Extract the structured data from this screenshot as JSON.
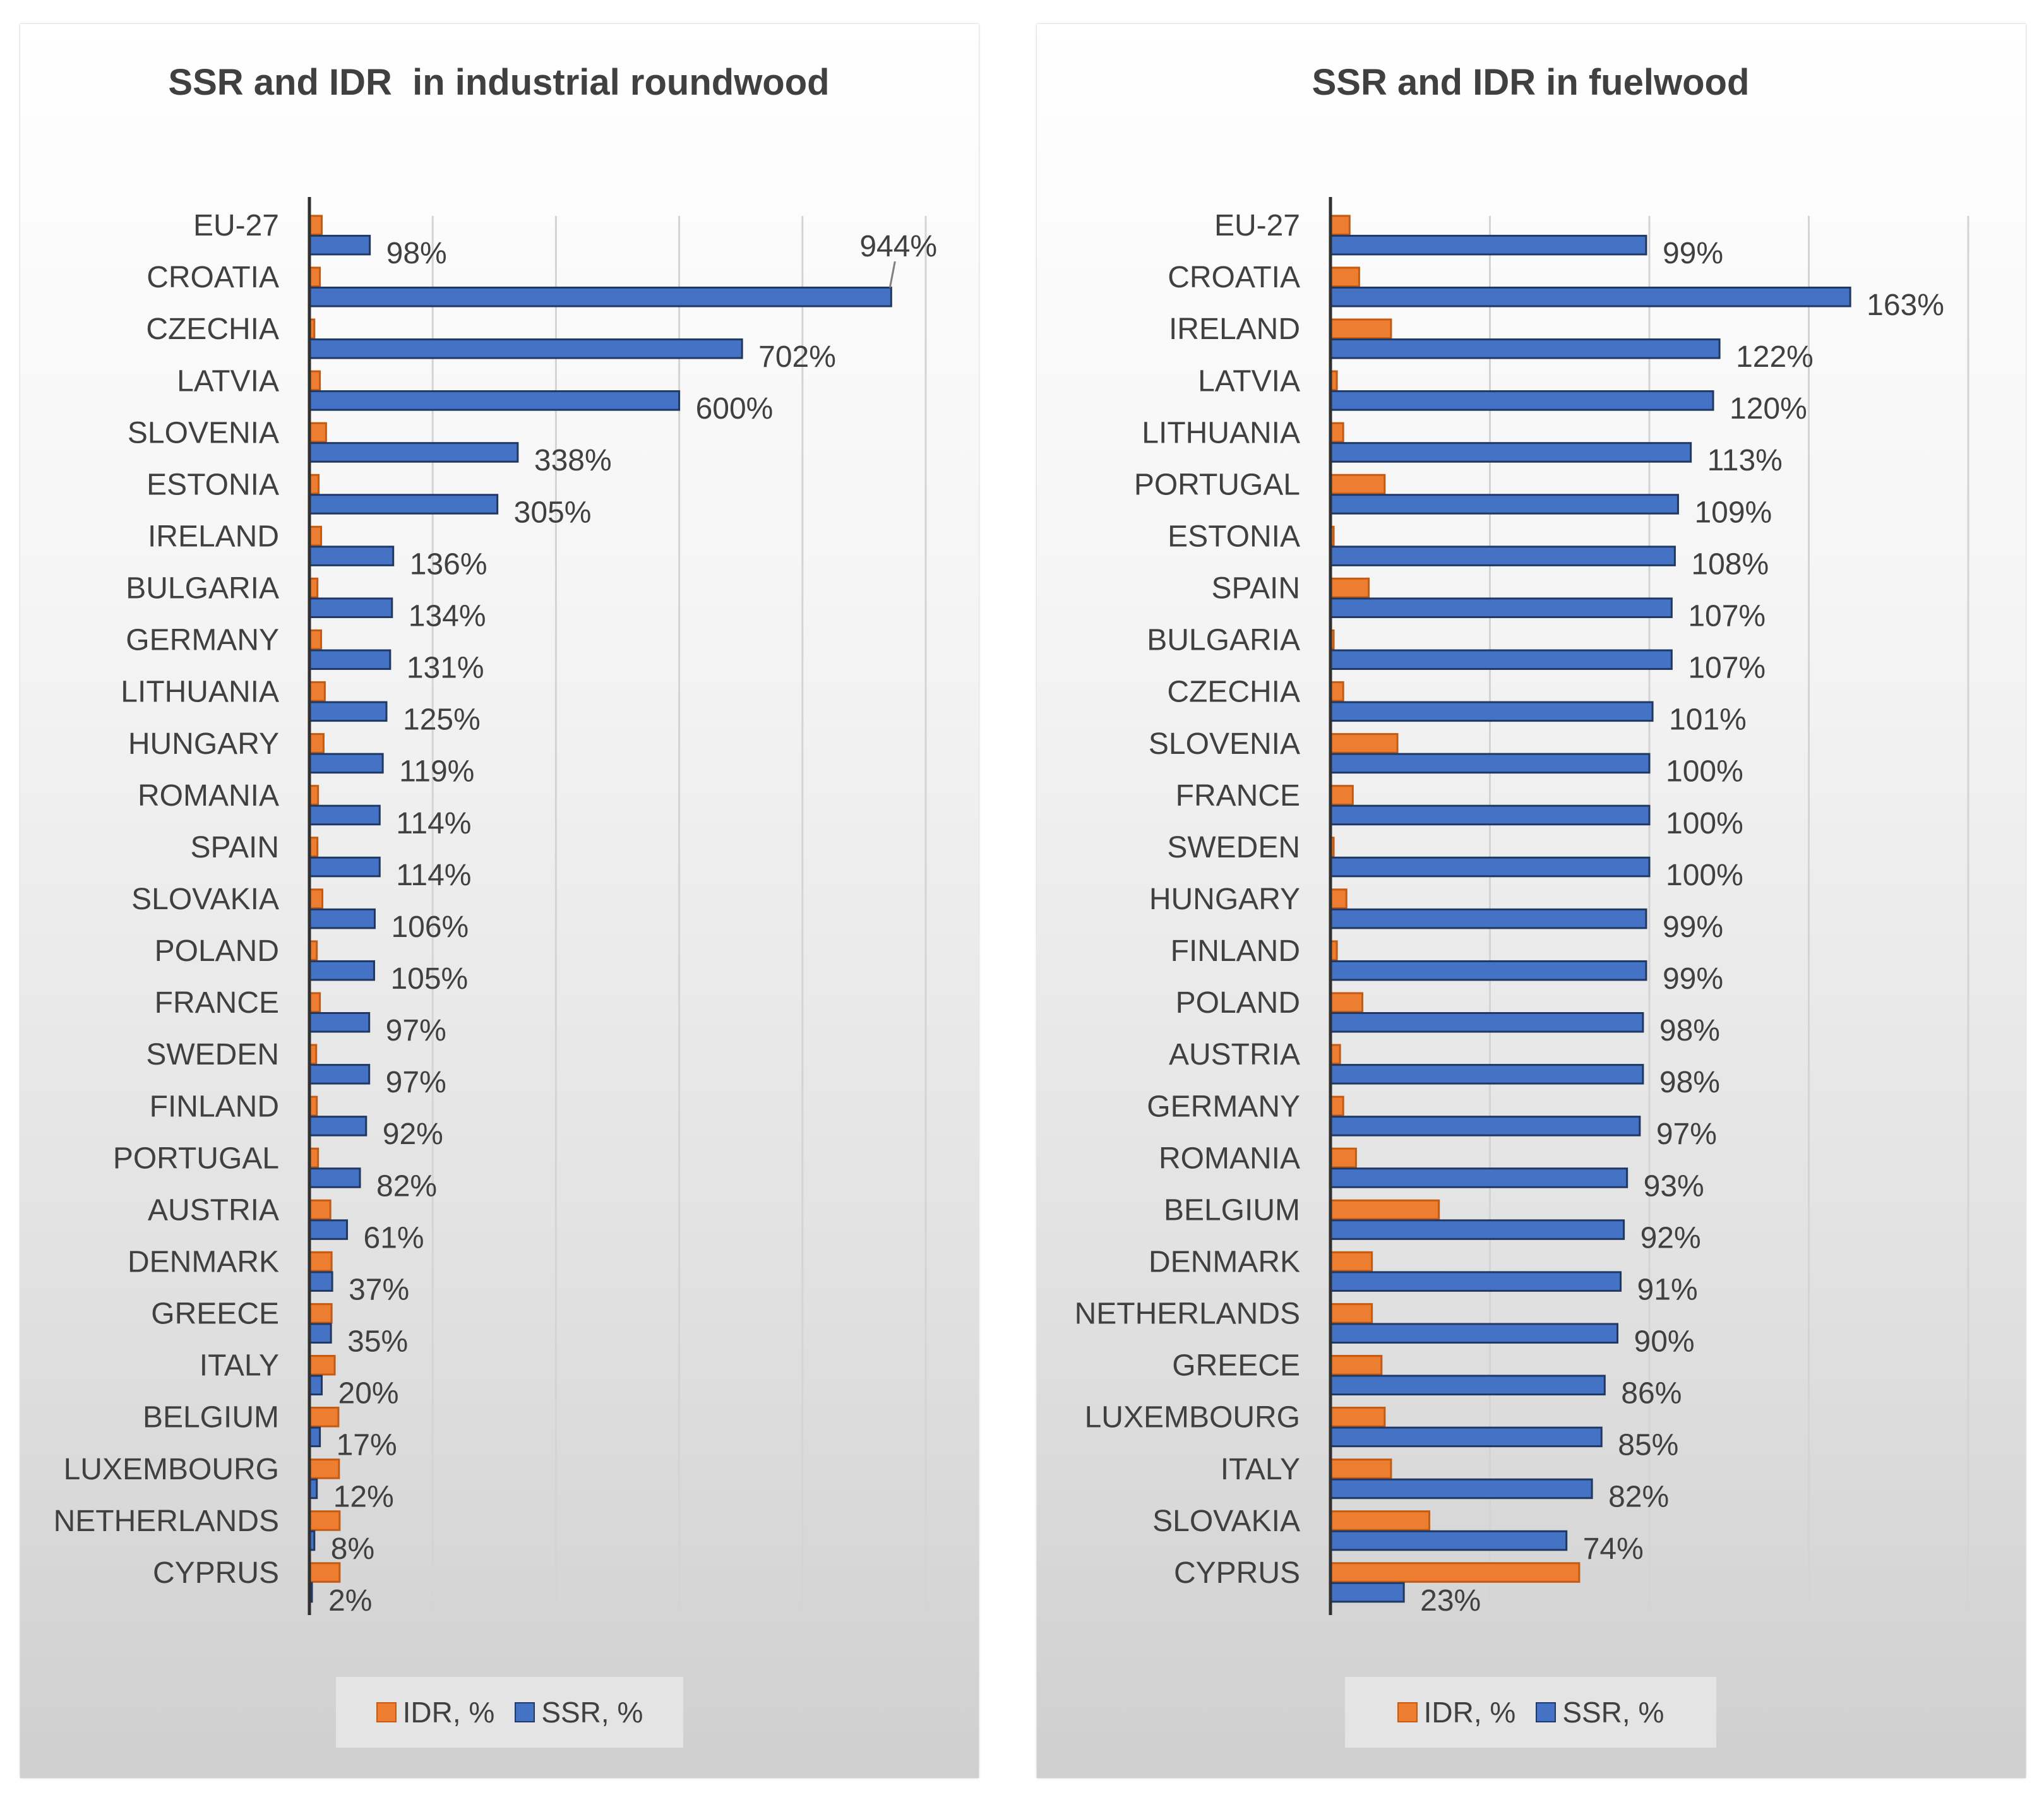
{
  "chart_data": [
    {
      "type": "bar",
      "orientation": "horizontal",
      "title": "SSR and IDR  in industrial roundwood",
      "categories": [
        "EU-27",
        "CROATIA",
        "CZECHIA",
        "LATVIA",
        "SLOVENIA",
        "ESTONIA",
        "IRELAND",
        "BULGARIA",
        "GERMANY",
        "LITHUANIA",
        "HUNGARY",
        "ROMANIA",
        "SPAIN",
        "SLOVAKIA",
        "POLAND",
        "FRANCE",
        "SWEDEN",
        "FINLAND",
        "PORTUGAL",
        "AUSTRIA",
        "DENMARK",
        "GREECE",
        "ITALY",
        "BELGIUM",
        "LUXEMBOURG",
        "NETHERLANDS",
        "CYPRUS"
      ],
      "series": [
        {
          "name": "IDR, %",
          "color": "#ed7d31",
          "values": [
            20,
            17,
            8,
            17,
            27,
            15,
            19,
            13,
            19,
            25,
            23,
            14,
            13,
            21,
            12,
            17,
            11,
            12,
            14,
            34,
            36,
            36,
            41,
            47,
            48,
            49,
            49
          ]
        },
        {
          "name": "SSR, %",
          "color": "#4472c4",
          "values": [
            98,
            944,
            702,
            600,
            338,
            305,
            136,
            134,
            131,
            125,
            119,
            114,
            114,
            106,
            105,
            97,
            97,
            92,
            82,
            61,
            37,
            35,
            20,
            17,
            12,
            8,
            2
          ]
        }
      ],
      "data_labels": [
        "98%",
        "944%",
        "702%",
        "600%",
        "338%",
        "305%",
        "136%",
        "134%",
        "131%",
        "125%",
        "119%",
        "114%",
        "114%",
        "106%",
        "105%",
        "97%",
        "97%",
        "92%",
        "82%",
        "61%",
        "37%",
        "35%",
        "20%",
        "17%",
        "12%",
        "8%",
        "2%"
      ],
      "xlim": [
        0,
        1000
      ],
      "grid": true,
      "legend": "bottom",
      "legend_labels": [
        "IDR, %",
        "SSR, %"
      ]
    },
    {
      "type": "bar",
      "orientation": "horizontal",
      "title": "SSR and IDR in fuelwood",
      "categories": [
        "EU-27",
        "CROATIA",
        "IRELAND",
        "LATVIA",
        "LITHUANIA",
        "PORTUGAL",
        "ESTONIA",
        "SPAIN",
        "BULGARIA",
        "CZECHIA",
        "SLOVENIA",
        "FRANCE",
        "SWEDEN",
        "HUNGARY",
        "FINLAND",
        "POLAND",
        "AUSTRIA",
        "GERMANY",
        "ROMANIA",
        "BELGIUM",
        "DENMARK",
        "NETHERLANDS",
        "GREECE",
        "LUXEMBOURG",
        "ITALY",
        "SLOVAKIA",
        "CYPRUS"
      ],
      "series": [
        {
          "name": "IDR, %",
          "color": "#ed7d31",
          "values": [
            6,
            9,
            19,
            2,
            4,
            17,
            1,
            12,
            1,
            4,
            21,
            7,
            1,
            5,
            2,
            10,
            3,
            4,
            8,
            34,
            13,
            13,
            16,
            17,
            19,
            31,
            78
          ]
        },
        {
          "name": "SSR, %",
          "color": "#4472c4",
          "values": [
            99,
            163,
            122,
            120,
            113,
            109,
            108,
            107,
            107,
            101,
            100,
            100,
            100,
            99,
            99,
            98,
            98,
            97,
            93,
            92,
            91,
            90,
            86,
            85,
            82,
            74,
            23
          ]
        }
      ],
      "data_labels": [
        "99%",
        "163%",
        "122%",
        "120%",
        "113%",
        "109%",
        "108%",
        "107%",
        "107%",
        "101%",
        "100%",
        "100%",
        "100%",
        "99%",
        "99%",
        "98%",
        "98%",
        "97%",
        "93%",
        "92%",
        "91%",
        "90%",
        "86%",
        "85%",
        "82%",
        "74%",
        "23%"
      ],
      "xlim": [
        0,
        200
      ],
      "grid": true,
      "legend": "bottom",
      "legend_labels": [
        "IDR, %",
        "SSR,  %"
      ]
    }
  ]
}
